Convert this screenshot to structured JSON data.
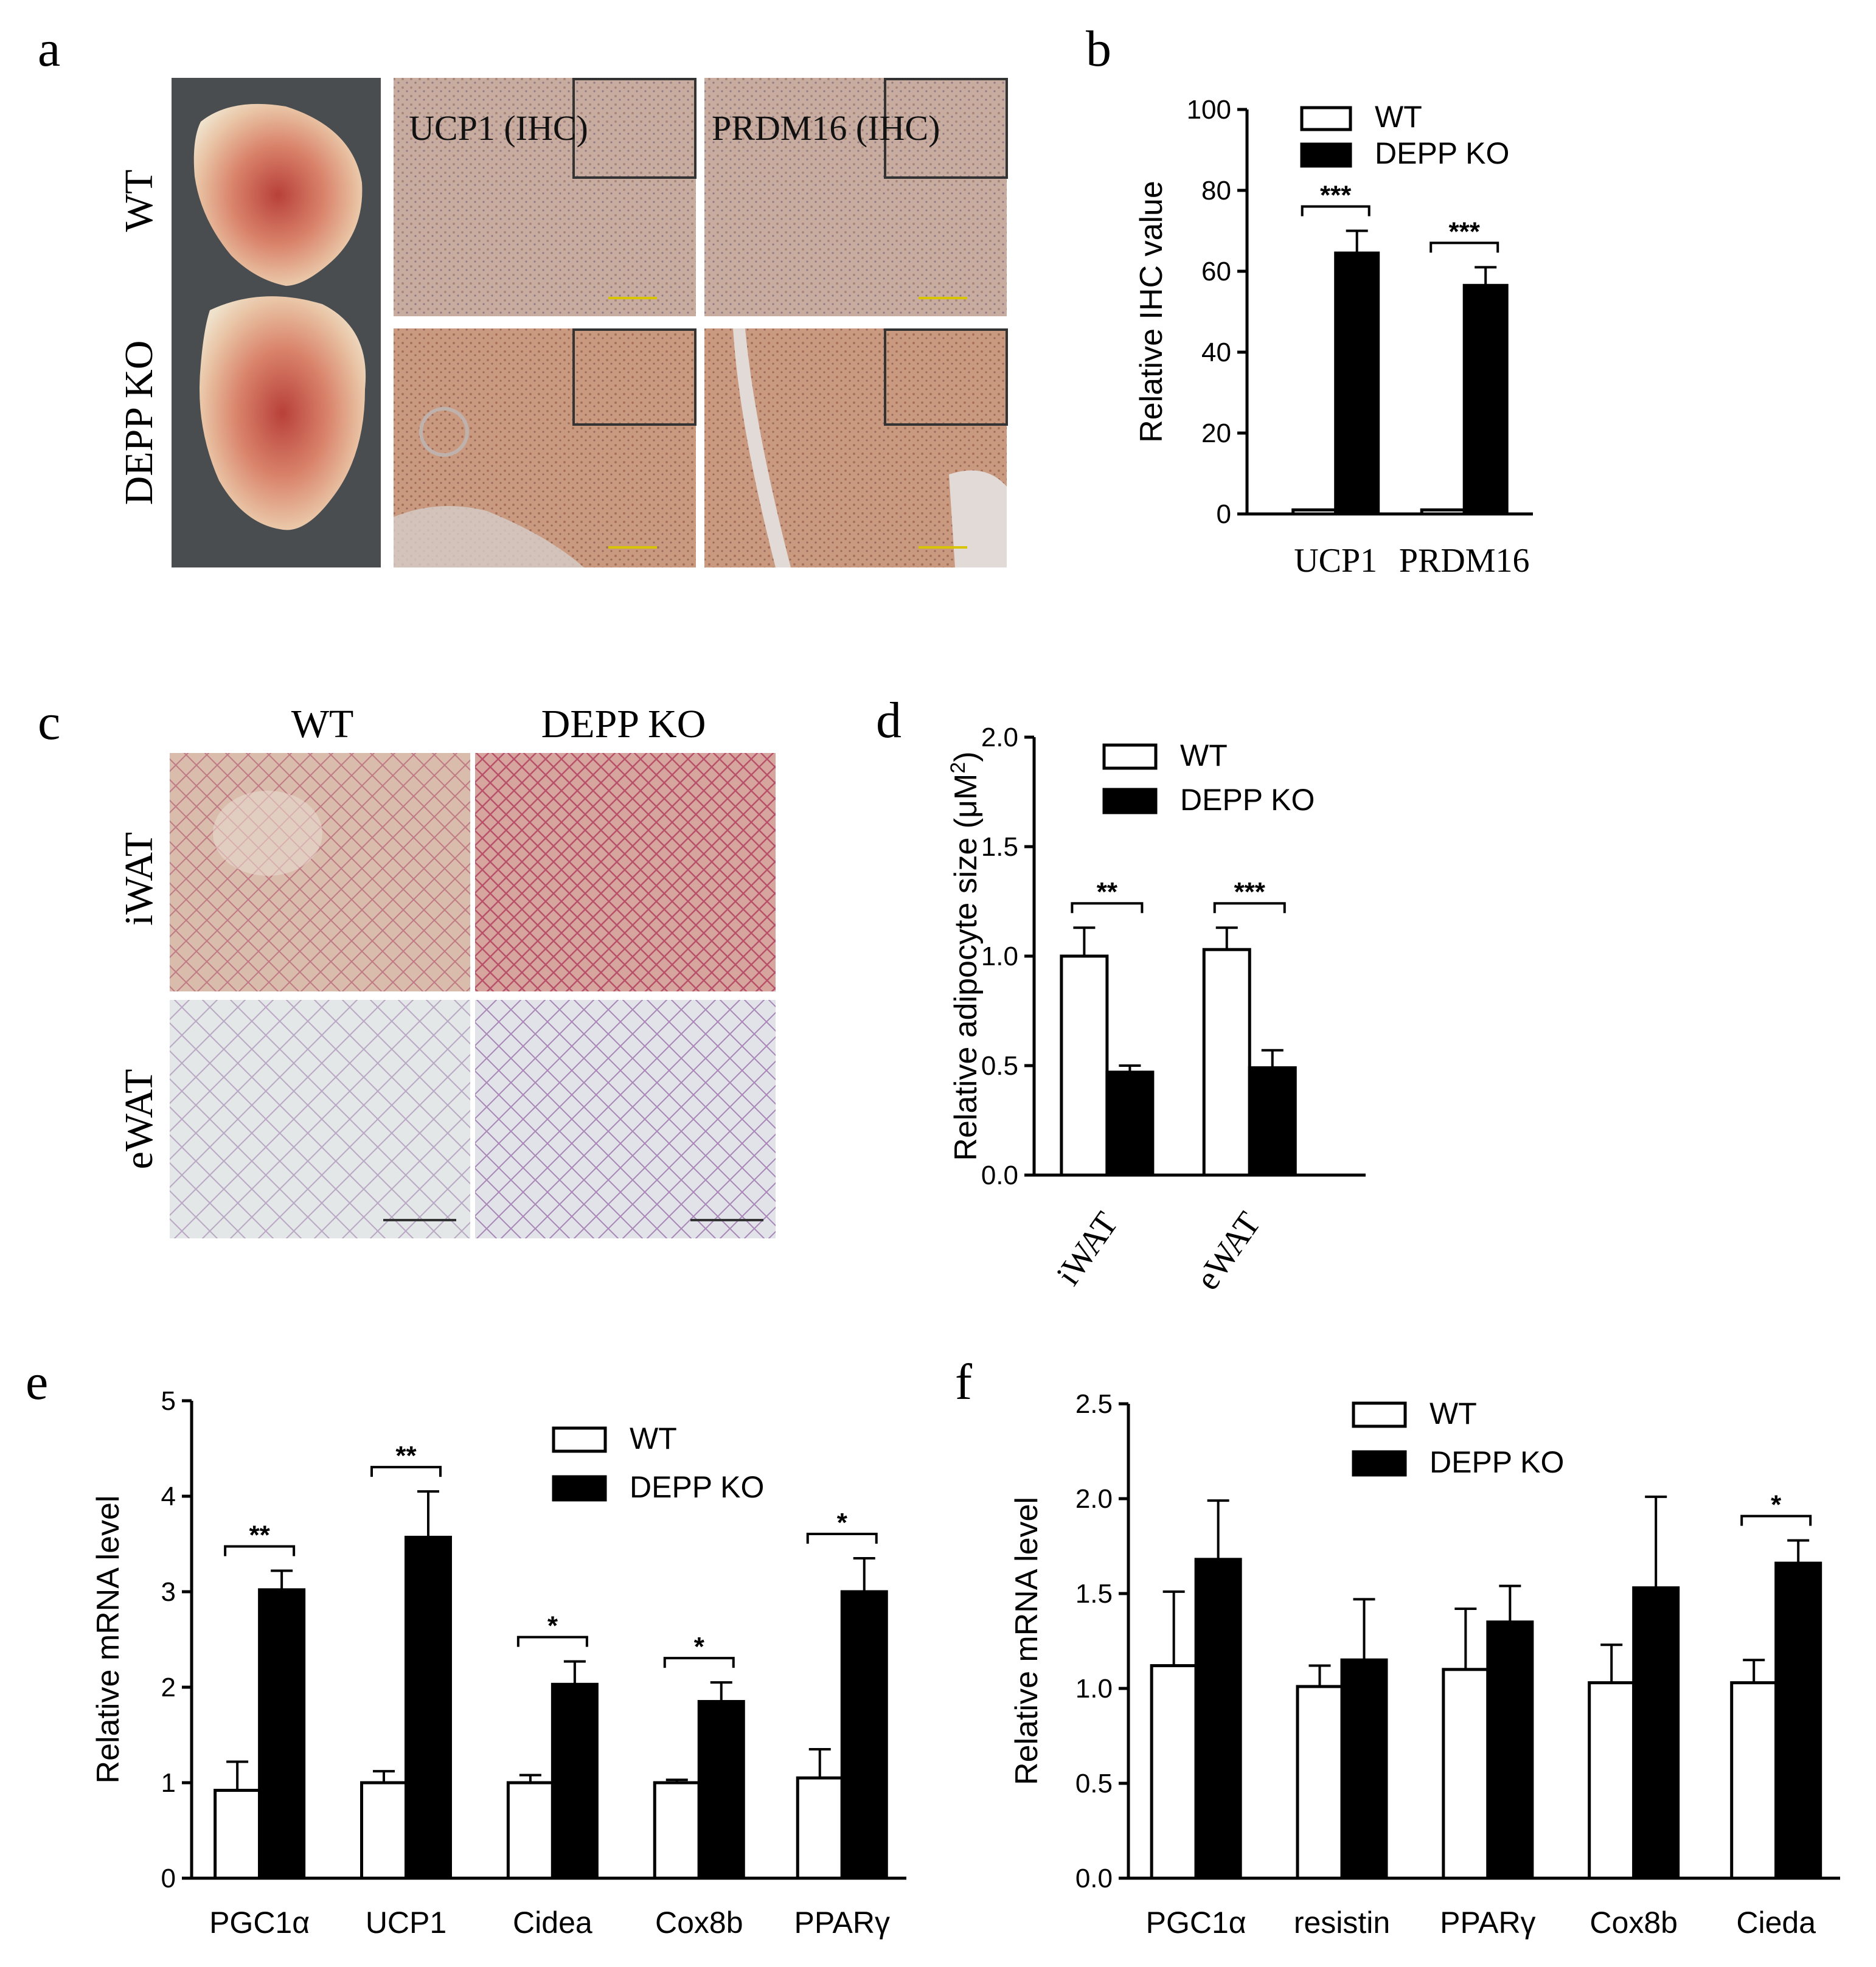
{
  "panels": {
    "a": {
      "letter": "a",
      "row_labels": [
        "WT",
        "DEPP KO"
      ],
      "col_captions": [
        "UCP1 (IHC)",
        "PRDM16 (IHC)"
      ]
    },
    "c": {
      "letter": "c",
      "col_labels": [
        "WT",
        "DEPP KO"
      ],
      "row_labels": [
        "iWAT",
        "eWAT"
      ]
    }
  },
  "colors": {
    "wt_fill": "#ffffff",
    "ko_fill": "#000000",
    "ihc_tissue": "#c9a899",
    "he_iwat": "#d8b3a8",
    "he_ewat": "#e6e8ea",
    "scale_bar": "#d8c400"
  },
  "chart_data": [
    {
      "id": "b",
      "letter": "b",
      "type": "bar",
      "categories": [
        "UCP1",
        "PRDM16"
      ],
      "category_font": "serif",
      "ylabel": "Relative IHC value",
      "ylim": [
        0,
        100
      ],
      "yticks": [
        "0",
        "20",
        "40",
        "60",
        "80",
        "100"
      ],
      "series": [
        {
          "name": "WT",
          "values": [
            1,
            1
          ],
          "errors": [
            0,
            0
          ]
        },
        {
          "name": "DEPP KO",
          "values": [
            64.5,
            56.5
          ],
          "errors": [
            5.5,
            4.5
          ]
        }
      ],
      "significance": [
        "***",
        "***"
      ],
      "legend": "top"
    },
    {
      "id": "d",
      "letter": "d",
      "type": "bar",
      "categories": [
        "iWAT",
        "eWAT"
      ],
      "category_font": "serif",
      "category_rotate": true,
      "ylabel": "Relative adipocyte size (μM",
      "ylabel_sup": "2",
      "ylabel_end": ")",
      "ylim": [
        0,
        2.0
      ],
      "yticks": [
        "0.0",
        "0.5",
        "1.0",
        "1.5",
        "2.0"
      ],
      "series": [
        {
          "name": "WT",
          "values": [
            1.0,
            1.03
          ],
          "errors": [
            0.13,
            0.1
          ]
        },
        {
          "name": "DEPP KO",
          "values": [
            0.47,
            0.49
          ],
          "errors": [
            0.03,
            0.08
          ]
        }
      ],
      "significance": [
        "**",
        "***"
      ],
      "legend": "top"
    },
    {
      "id": "e",
      "letter": "e",
      "type": "bar",
      "categories": [
        "PGC1α",
        "UCP1",
        "Cidea",
        "Cox8b",
        "PPARγ"
      ],
      "category_font": "sans",
      "ylabel": "Relative mRNA level",
      "ylim": [
        0,
        5
      ],
      "yticks": [
        "0",
        "1",
        "2",
        "3",
        "4",
        "5"
      ],
      "series": [
        {
          "name": "WT",
          "values": [
            0.92,
            1.0,
            1.0,
            1.0,
            1.05
          ],
          "errors": [
            0.3,
            0.12,
            0.08,
            0.03,
            0.3
          ]
        },
        {
          "name": "DEPP KO",
          "values": [
            3.02,
            3.57,
            2.03,
            1.85,
            3.0
          ],
          "errors": [
            0.2,
            0.48,
            0.24,
            0.2,
            0.35
          ]
        }
      ],
      "significance": [
        "**",
        "**",
        "*",
        "*",
        "*"
      ],
      "legend": "top-right"
    },
    {
      "id": "f",
      "letter": "f",
      "type": "bar",
      "categories": [
        "PGC1α",
        "resistin",
        "PPARγ",
        "Cox8b",
        "Cieda"
      ],
      "category_font": "sans",
      "ylabel": "Relative mRNA level",
      "ylim": [
        0,
        2.5
      ],
      "yticks": [
        "0.0",
        "0.5",
        "1.0",
        "1.5",
        "2.0",
        "2.5"
      ],
      "series": [
        {
          "name": "WT",
          "values": [
            1.12,
            1.01,
            1.1,
            1.03,
            1.03
          ],
          "errors": [
            0.39,
            0.11,
            0.32,
            0.2,
            0.12
          ]
        },
        {
          "name": "DEPP KO",
          "values": [
            1.68,
            1.15,
            1.35,
            1.53,
            1.66
          ],
          "errors": [
            0.31,
            0.32,
            0.19,
            0.48,
            0.12
          ]
        }
      ],
      "significance": [
        "",
        "",
        "",
        "",
        "*"
      ],
      "legend": "top"
    }
  ]
}
